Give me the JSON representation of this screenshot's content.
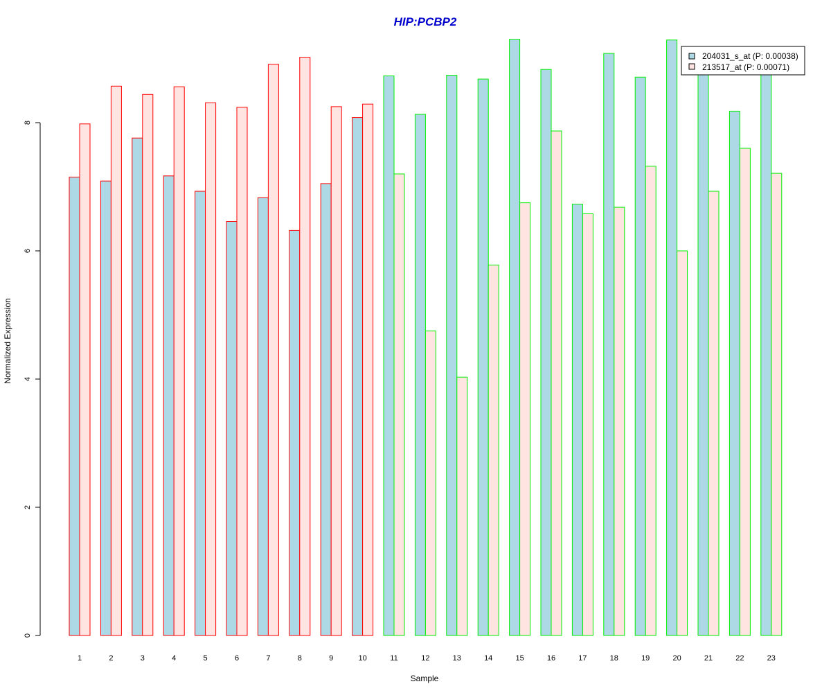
{
  "chart_data": {
    "type": "bar",
    "title": "HIP:PCBP2",
    "xlabel": "Sample",
    "ylabel": "Normalized Expression",
    "categories": [
      "1",
      "2",
      "3",
      "4",
      "5",
      "6",
      "7",
      "8",
      "9",
      "10",
      "11",
      "12",
      "13",
      "14",
      "15",
      "16",
      "17",
      "18",
      "19",
      "20",
      "21",
      "22",
      "23"
    ],
    "yticks": [
      "0",
      "2",
      "4",
      "6",
      "8"
    ],
    "ylim": [
      0,
      9.3
    ],
    "grid": false,
    "legend_position": "top-right",
    "series": [
      {
        "name": "204031_s_at (P: 0.00038)",
        "fill": "#add8e6",
        "values": [
          7.15,
          7.09,
          7.76,
          7.17,
          6.93,
          6.46,
          6.83,
          6.32,
          7.05,
          8.08,
          8.73,
          8.13,
          8.74,
          8.68,
          9.3,
          8.83,
          6.73,
          9.08,
          8.71,
          9.29,
          8.8,
          8.18,
          8.8
        ]
      },
      {
        "name": "213517_at (P: 0.00071)",
        "fill": "#ffe4e1",
        "values": [
          7.98,
          8.57,
          8.44,
          8.56,
          8.31,
          8.24,
          8.91,
          9.02,
          8.25,
          8.29,
          7.2,
          4.75,
          4.03,
          5.78,
          6.75,
          7.87,
          6.58,
          6.68,
          7.32,
          6.0,
          6.93,
          7.6,
          7.21
        ]
      }
    ],
    "group_border_colors": [
      "#ff0000",
      "#ff0000",
      "#ff0000",
      "#ff0000",
      "#ff0000",
      "#ff0000",
      "#ff0000",
      "#ff0000",
      "#ff0000",
      "#ff0000",
      "#00ee00",
      "#00ee00",
      "#00ee00",
      "#00ee00",
      "#00ee00",
      "#00ee00",
      "#00ee00",
      "#00ee00",
      "#00ee00",
      "#00ee00",
      "#00ee00",
      "#00ee00",
      "#00ee00"
    ],
    "title_color": "#0000cd"
  }
}
